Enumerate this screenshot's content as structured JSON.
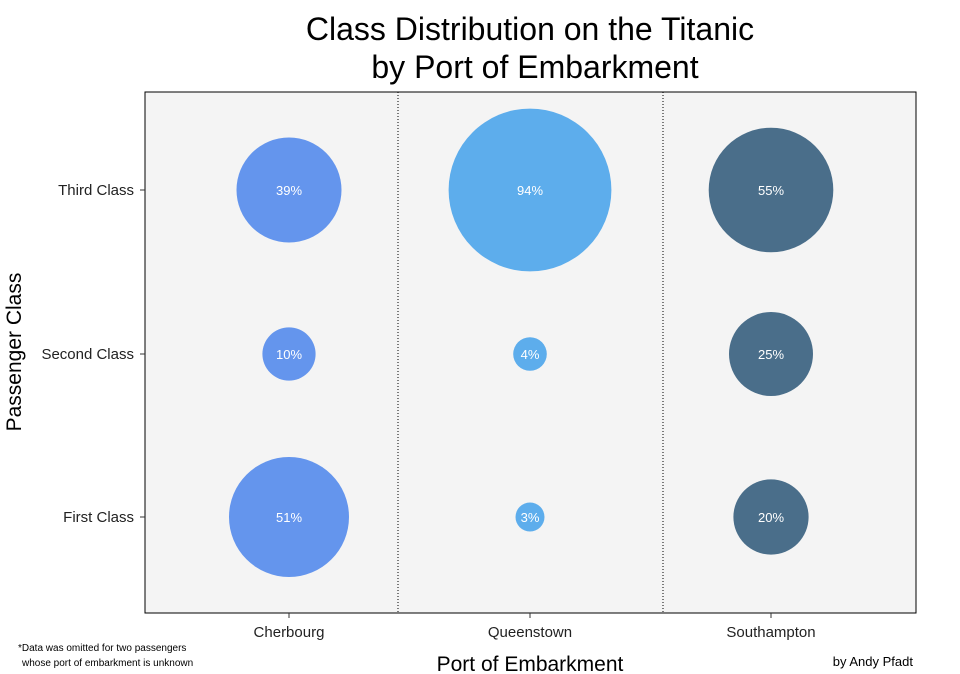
{
  "chart_data": {
    "type": "scatter",
    "subtype": "bubble",
    "title_lines": [
      "Class Distribution on the Titanic",
      "by Port of Embarkment"
    ],
    "xlabel": "Port of Embarkment",
    "ylabel": "Passenger Class",
    "x_categories": [
      "Cherbourg",
      "Queenstown",
      "Southampton"
    ],
    "y_categories": [
      "First Class",
      "Second Class",
      "Third Class"
    ],
    "series": [
      {
        "port": "Cherbourg",
        "color": "#6495ED",
        "values": {
          "First Class": 51,
          "Second Class": 10,
          "Third Class": 39
        },
        "labels": {
          "First Class": "51%",
          "Second Class": "10%",
          "Third Class": "39%"
        }
      },
      {
        "port": "Queenstown",
        "color": "#5DADEC",
        "values": {
          "First Class": 3,
          "Second Class": 4,
          "Third Class": 94
        },
        "labels": {
          "First Class": "3%",
          "Second Class": "4%",
          "Third Class": "94%"
        }
      },
      {
        "port": "Southampton",
        "color": "#4A6E8A",
        "values": {
          "First Class": 20,
          "Second Class": 25,
          "Third Class": 55
        },
        "labels": {
          "First Class": "20%",
          "Second Class": "25%",
          "Third Class": "55%"
        }
      }
    ],
    "size_encoding": "percent of port's passengers",
    "panel_background": "#f4f4f4",
    "separator_style": "dotted",
    "grid": false,
    "legend": "none"
  },
  "footnote_lines": [
    "*Data was omitted for two passengers",
    "whose port of embarkment is unknown"
  ],
  "credit": "by Andy Pfadt"
}
